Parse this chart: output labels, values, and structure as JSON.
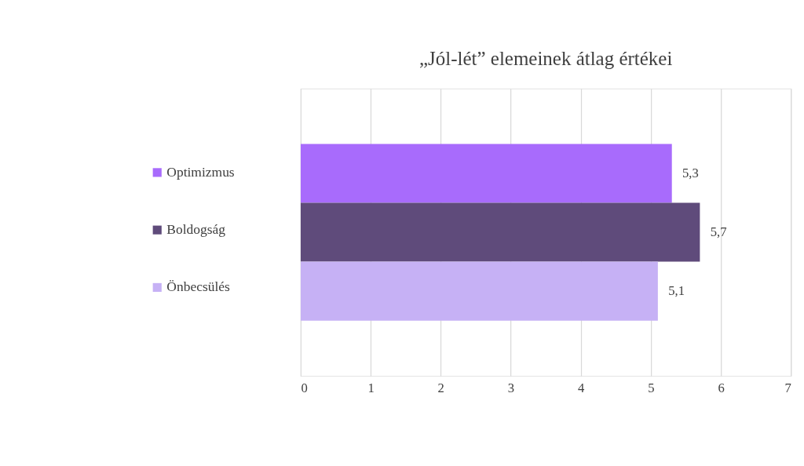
{
  "chart_data": {
    "type": "bar",
    "orientation": "horizontal",
    "title": "„Jól-lét” elemeinek átlag értékei",
    "categories": [
      null
    ],
    "series": [
      {
        "name": "Optimizmus",
        "color": "#a86bfc",
        "values": [
          5.3
        ],
        "value_labels": [
          "5,3"
        ]
      },
      {
        "name": "Boldogság",
        "color": "#5f4b7b",
        "values": [
          5.7
        ],
        "value_labels": [
          "5,7"
        ]
      },
      {
        "name": "Önbecsülés",
        "color": "#c6b1f5",
        "values": [
          5.1
        ],
        "value_labels": [
          "5,1"
        ]
      }
    ],
    "xlim": [
      0,
      7
    ],
    "xticks": [
      0,
      1,
      2,
      3,
      4,
      5,
      6,
      7
    ],
    "grid": "x",
    "legend": "left"
  }
}
